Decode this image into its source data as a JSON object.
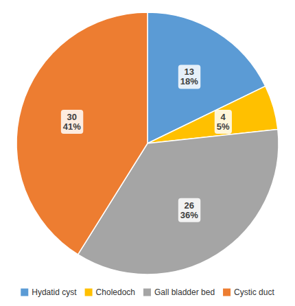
{
  "chart_data": {
    "type": "pie",
    "categories": [
      "Hydatid cyst",
      "Choledoch",
      "Gall bladder bed",
      "Cystic duct"
    ],
    "values": [
      13,
      4,
      26,
      30
    ],
    "value_labels": [
      "13\n18%",
      "4\n5%",
      "26\n36%",
      "30\n41%"
    ],
    "colors": [
      "#5B9BD5",
      "#FFC000",
      "#A5A5A5",
      "#ED7D31"
    ],
    "data_labels": true,
    "legend": "bottom"
  }
}
